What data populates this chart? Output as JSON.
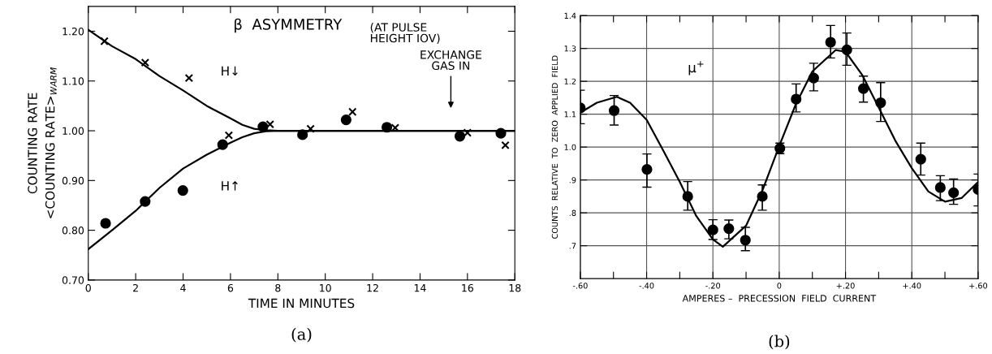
{
  "chart_data": [
    {
      "type": "scatter",
      "xlabel": "TIME IN MINUTES",
      "ylabel": "COUNTING RATE\n<COUNTING RATE>$_{WARM}$",
      "xlim": [
        0,
        18
      ],
      "ylim": [
        0.7,
        1.25
      ],
      "xticks": [
        0,
        2,
        4,
        6,
        8,
        10,
        12,
        14,
        16,
        18
      ],
      "yticks": [
        {
          "value": 0.7,
          "label": "0.70"
        },
        {
          "value": 0.8,
          "label": "0.80"
        },
        {
          "value": 0.9,
          "label": "0.90"
        },
        {
          "value": 1.0,
          "label": "1.00"
        },
        {
          "value": 1.1,
          "label": "1.10"
        },
        {
          "value": 1.2,
          "label": "1.20"
        }
      ],
      "grid": false,
      "legend": false,
      "series": [
        {
          "marker": "circle",
          "color": "#000000",
          "x": [
            0.73,
            2.4,
            3.99,
            5.67,
            7.37,
            9.04,
            10.88,
            12.6,
            15.68,
            17.41
          ],
          "values": [
            0.814,
            0.858,
            0.88,
            0.972,
            1.008,
            0.992,
            1.022,
            1.007,
            0.989,
            0.995
          ]
        },
        {
          "marker": "cross",
          "color": "#000000",
          "x": [
            0.68,
            2.4,
            4.25,
            5.93,
            7.67,
            9.38,
            11.15,
            12.95,
            16.0,
            17.6
          ],
          "values": [
            1.18,
            1.137,
            1.106,
            0.991,
            1.013,
            1.004,
            1.038,
            1.006,
            0.996,
            0.971
          ]
        },
        {
          "type": "line",
          "color": "#000000",
          "x": [
            0,
            1,
            2,
            3,
            4,
            5,
            6,
            6.5,
            7,
            7.5,
            8,
            18
          ],
          "values": [
            1.203,
            1.17,
            1.144,
            1.11,
            1.081,
            1.05,
            1.025,
            1.012,
            1.004,
            1.001,
            1.0,
            1.0
          ]
        },
        {
          "type": "line",
          "color": "#000000",
          "x": [
            0,
            1,
            2,
            3,
            4,
            5,
            6,
            6.5,
            7,
            7.5,
            8,
            18
          ],
          "values": [
            0.762,
            0.8,
            0.839,
            0.885,
            0.924,
            0.952,
            0.976,
            0.987,
            0.995,
            0.999,
            1.0,
            1.0
          ]
        }
      ],
      "annotations": [
        "β  ASYMMETRY",
        "(AT PULSE\nHEIGHT IOV)",
        "H↓",
        "H↑",
        "EXCHANGE\nGAS IN",
        "(a)"
      ]
    },
    {
      "type": "scatter",
      "xlabel": "AMPERES –  PRECESSION  FIELD  CURRENT",
      "ylabel": "COUNTS  RELATIVE  TO  ZERO  APPLIED  FIELD",
      "xlim": [
        -0.6,
        0.6
      ],
      "ylim": [
        0.6,
        1.4
      ],
      "xticks": [
        {
          "value": -0.6,
          "label": "-.60"
        },
        {
          "value": -0.5,
          "label": null
        },
        {
          "value": -0.4,
          "label": "-.40"
        },
        {
          "value": -0.3,
          "label": null
        },
        {
          "value": -0.2,
          "label": "-.20"
        },
        {
          "value": -0.1,
          "label": null
        },
        {
          "value": 0,
          "label": "0"
        },
        {
          "value": 0.1,
          "label": null
        },
        {
          "value": 0.2,
          "label": "+.20"
        },
        {
          "value": 0.3,
          "label": null
        },
        {
          "value": 0.4,
          "label": "+.40"
        },
        {
          "value": 0.5,
          "label": null
        },
        {
          "value": 0.6,
          "label": "+.60"
        }
      ],
      "yticks": [
        {
          "value": 0.7,
          "label": ".7"
        },
        {
          "value": 0.8,
          "label": ".8"
        },
        {
          "value": 0.9,
          "label": ".9"
        },
        {
          "value": 1.0,
          "label": "1.0"
        },
        {
          "value": 1.1,
          "label": "1.1"
        },
        {
          "value": 1.2,
          "label": "1.2"
        },
        {
          "value": 1.3,
          "label": "1.3"
        },
        {
          "value": 1.4,
          "label": "1.4"
        }
      ],
      "grid": true,
      "legend": false,
      "series": [
        {
          "marker": "circle",
          "color": "#000000",
          "x": [
            -0.6,
            -0.498,
            -0.399,
            -0.276,
            -0.2,
            -0.152,
            -0.102,
            -0.051,
            0.002,
            0.051,
            0.104,
            0.155,
            0.204,
            0.254,
            0.306,
            0.427,
            0.486,
            0.526,
            0.6
          ],
          "values": [
            1.119,
            1.111,
            0.932,
            0.85,
            0.748,
            0.752,
            0.717,
            0.85,
            0.996,
            1.146,
            1.21,
            1.319,
            1.296,
            1.178,
            1.135,
            0.963,
            0.877,
            0.861,
            0.871
          ],
          "errors": [
            [
              1.071,
              1.173
            ],
            [
              1.067,
              1.157
            ],
            [
              0.878,
              0.979
            ],
            [
              0.808,
              0.895
            ],
            [
              0.719,
              0.779
            ],
            [
              0.721,
              0.778
            ],
            [
              0.685,
              0.756
            ],
            [
              0.808,
              0.885
            ],
            [
              0.98,
              1.012
            ],
            [
              1.107,
              1.192
            ],
            [
              1.171,
              1.255
            ],
            [
              1.271,
              1.37
            ],
            [
              1.249,
              1.347
            ],
            [
              1.137,
              1.216
            ],
            [
              1.078,
              1.196
            ],
            [
              0.915,
              1.012
            ],
            [
              0.837,
              0.913
            ],
            [
              0.826,
              0.903
            ],
            [
              0.821,
              0.918
            ]
          ]
        },
        {
          "type": "line",
          "color": "#000000",
          "x": [
            -0.6,
            -0.55,
            -0.49,
            -0.45,
            -0.4,
            -0.35,
            -0.3,
            -0.25,
            -0.2,
            -0.17,
            -0.1,
            -0.05,
            0,
            0.05,
            0.1,
            0.17,
            0.2,
            0.25,
            0.3,
            0.35,
            0.4,
            0.45,
            0.5,
            0.55,
            0.6
          ],
          "values": [
            1.105,
            1.135,
            1.153,
            1.135,
            1.083,
            0.99,
            0.894,
            0.79,
            0.719,
            0.697,
            0.761,
            0.87,
            1.003,
            1.13,
            1.23,
            1.295,
            1.29,
            1.22,
            1.121,
            1.02,
            0.936,
            0.865,
            0.834,
            0.845,
            0.894
          ]
        }
      ],
      "annotations": [
        "μ$^{+}$",
        "(b)"
      ]
    }
  ]
}
